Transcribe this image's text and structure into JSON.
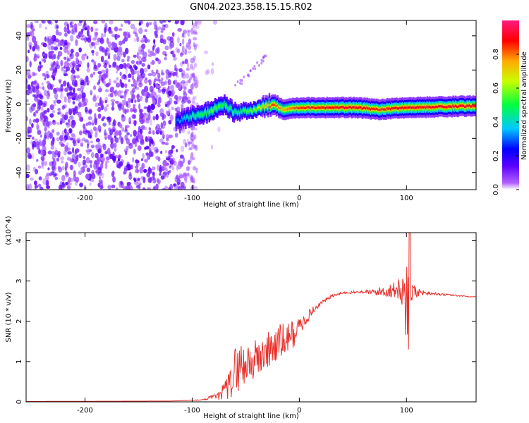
{
  "title": "GN04.2023.358.15.15.R02",
  "chart_data": [
    {
      "type": "heatmap",
      "xlabel": "Height of straight line (km)",
      "ylabel": "Frequency (Hz)",
      "xlim": [
        -255,
        165
      ],
      "ylim": [
        -50,
        49
      ],
      "xticks": [
        -200,
        -100,
        0,
        100
      ],
      "yticks": [
        -40,
        -20,
        0,
        20,
        40
      ],
      "colorbar": {
        "label": "Normalized spectral amplitude",
        "range": [
          0,
          1
        ],
        "ticks": [
          "0.0",
          "0.2",
          "0.4",
          "0.6",
          "0.8"
        ],
        "colors": [
          "#ffffff",
          "#7a00ff",
          "#0000ff",
          "#00c8ff",
          "#00ff00",
          "#ffff00",
          "#ff0000",
          "#ff1a80"
        ]
      },
      "noise_region_x": [
        -255,
        -100
      ],
      "ridge": [
        {
          "x": -115,
          "y": -10,
          "amp": 0.3
        },
        {
          "x": -100,
          "y": -7,
          "amp": 0.45
        },
        {
          "x": -90,
          "y": -6,
          "amp": 0.5
        },
        {
          "x": -80,
          "y": -3,
          "amp": 0.55
        },
        {
          "x": -70,
          "y": 0,
          "amp": 0.5
        },
        {
          "x": -60,
          "y": -5,
          "amp": 0.45
        },
        {
          "x": -40,
          "y": -3,
          "amp": 0.6
        },
        {
          "x": -25,
          "y": 0,
          "amp": 0.85
        },
        {
          "x": -15,
          "y": -3,
          "amp": 0.75
        },
        {
          "x": 0,
          "y": -2,
          "amp": 0.85
        },
        {
          "x": 50,
          "y": -2,
          "amp": 0.9
        },
        {
          "x": 75,
          "y": -3,
          "amp": 0.85
        },
        {
          "x": 100,
          "y": -2,
          "amp": 0.9
        },
        {
          "x": 165,
          "y": -1,
          "amp": 0.9
        }
      ]
    },
    {
      "type": "line",
      "xlabel": "Height of straight line (km)",
      "ylabel": "SNR (10 * v/v)",
      "y_multiplier": "(x10^4)",
      "xlim": [
        -255,
        165
      ],
      "ylim": [
        0,
        4.2
      ],
      "xticks": [
        -200,
        -100,
        0,
        100
      ],
      "yticks": [
        0,
        1,
        2,
        3,
        4
      ],
      "color": "#e8302b",
      "series": [
        {
          "x": [
            -255,
            -120,
            -90,
            -75,
            -65,
            -60,
            -55,
            -50,
            -45,
            -40,
            -35,
            -30,
            -25,
            -20,
            -15,
            -10,
            -5,
            0,
            10,
            20,
            30,
            40,
            50,
            60,
            70,
            80,
            90,
            100,
            110,
            120,
            140,
            165
          ],
          "values": [
            0.01,
            0.02,
            0.05,
            0.15,
            0.4,
            0.8,
            0.9,
            0.95,
            1.0,
            1.05,
            1.15,
            1.25,
            1.35,
            1.45,
            1.5,
            1.6,
            1.7,
            1.85,
            2.2,
            2.45,
            2.62,
            2.7,
            2.72,
            2.73,
            2.72,
            2.75,
            2.78,
            2.75,
            2.72,
            2.7,
            2.65,
            2.6
          ],
          "noise_amplitude": [
            0,
            0,
            0.01,
            0.1,
            0.4,
            0.6,
            0.6,
            0.6,
            0.55,
            0.5,
            0.5,
            0.5,
            0.5,
            0.5,
            0.45,
            0.4,
            0.35,
            0.25,
            0.12,
            0.05,
            0.04,
            0.03,
            0.03,
            0.04,
            0.08,
            0.15,
            0.2,
            0.5,
            0.12,
            0.04,
            0.02,
            0.01
          ]
        }
      ]
    }
  ]
}
